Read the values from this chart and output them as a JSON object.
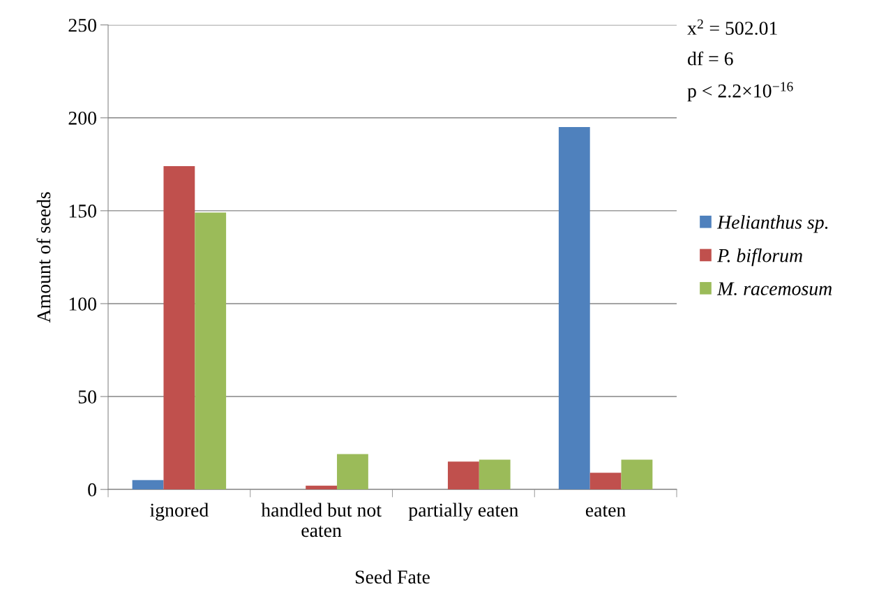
{
  "chart_data": {
    "type": "bar",
    "xlabel": "Seed Fate",
    "ylabel": "Amount of seeds",
    "categories": [
      "ignored",
      "handled but not eaten",
      "partially eaten",
      "eaten"
    ],
    "series": [
      {
        "name": "Helianthus sp.",
        "color": "#4f81bd",
        "values": [
          5,
          0,
          0,
          195
        ]
      },
      {
        "name": "P. biflorum",
        "color": "#c0504d",
        "values": [
          174,
          2,
          15,
          9
        ]
      },
      {
        "name": "M. racemosum",
        "color": "#9bbb59",
        "values": [
          149,
          19,
          16,
          16
        ]
      }
    ],
    "ylim": [
      0,
      250
    ],
    "yticks": [
      0,
      50,
      100,
      150,
      200,
      250
    ],
    "grid": "y",
    "legend": "right",
    "annotations": [
      "x$^{2}$ = 502.01",
      "df = 6",
      "p < 2.2×10$^{−16}$"
    ]
  }
}
